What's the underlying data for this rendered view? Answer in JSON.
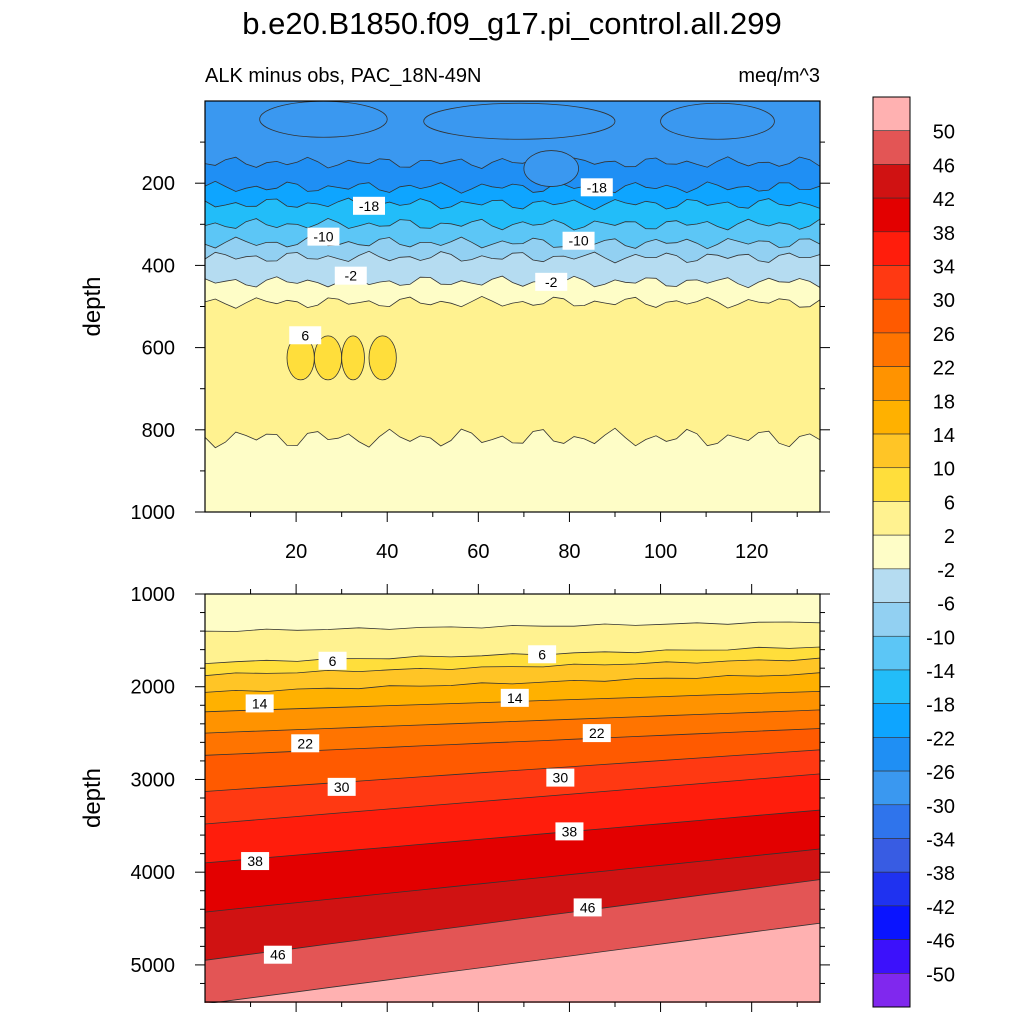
{
  "page": {
    "title": "b.e20.B1850.f09_g17.pi_control.all.299",
    "subtitle_left": "ALK minus obs, PAC_18N-49N",
    "subtitle_right": "meq/m^3"
  },
  "chart_data": [
    {
      "type": "contour",
      "panel": "upper",
      "xlabel": "",
      "ylabel": "depth",
      "xlim": [
        0,
        135
      ],
      "ylim": [
        0,
        1000
      ],
      "y_reversed": true,
      "xticks": [
        20,
        40,
        60,
        80,
        100,
        120
      ],
      "yticks": [
        200,
        400,
        600,
        800,
        1000
      ],
      "layers": [
        {
          "range": "-30 to -26",
          "color": "#3a98f0",
          "depth": [
            0,
            150
          ]
        },
        {
          "range": "-26 to -22",
          "color": "#1f8ff4",
          "depth": [
            150,
            210
          ]
        },
        {
          "range": "-22 to -18",
          "color": "#0ea5ff",
          "depth": [
            210,
            250
          ]
        },
        {
          "range": "-18 to -14",
          "color": "#22bdf9",
          "depth": [
            250,
            300
          ]
        },
        {
          "range": "-14 to -10",
          "color": "#5cc6f6",
          "depth": [
            300,
            345
          ]
        },
        {
          "range": "-10 to -6",
          "color": "#92d0f2",
          "depth": [
            345,
            380
          ]
        },
        {
          "range": "-6 to -2",
          "color": "#b5dcf1",
          "depth": [
            380,
            440
          ]
        },
        {
          "range": "-2 to 2",
          "color": "#fefdc7",
          "depth": [
            440,
            490
          ]
        },
        {
          "range": "2 to 6",
          "color": "#fff290",
          "depth": [
            490,
            820
          ]
        },
        {
          "range": "-2 to 2",
          "color": "#fefdc7",
          "depth": [
            820,
            1000
          ]
        }
      ],
      "contour_labels": [
        {
          "text": "-18",
          "x": 36,
          "depth": 255
        },
        {
          "text": "-18",
          "x": 86,
          "depth": 210
        },
        {
          "text": "-10",
          "x": 26,
          "depth": 330
        },
        {
          "text": "-10",
          "x": 82,
          "depth": 340
        },
        {
          "text": "-2",
          "x": 32,
          "depth": 425
        },
        {
          "text": "-2",
          "x": 76,
          "depth": 440
        },
        {
          "text": "6",
          "x": 22,
          "depth": 570
        }
      ]
    },
    {
      "type": "contour",
      "panel": "lower",
      "xlabel": "",
      "ylabel": "depth",
      "xlim": [
        0,
        135
      ],
      "ylim": [
        1000,
        5400
      ],
      "y_reversed": true,
      "yticks": [
        1000,
        2000,
        3000,
        4000,
        5000
      ],
      "contour_levels": [
        2,
        6,
        10,
        14,
        18,
        22,
        26,
        30,
        34,
        38,
        42,
        46,
        50
      ],
      "contour_depths_left": [
        1400,
        1740,
        1870,
        2060,
        2270,
        2500,
        2740,
        3130,
        3480,
        3900,
        4430,
        4950,
        5420
      ],
      "contour_depths_right": [
        1300,
        1570,
        1700,
        1860,
        2050,
        2250,
        2450,
        2680,
        2940,
        3330,
        3750,
        4080,
        4550
      ],
      "contour_labels": [
        {
          "text": "6",
          "x": 28,
          "depth": 1720
        },
        {
          "text": "6",
          "x": 74,
          "depth": 1650
        },
        {
          "text": "14",
          "x": 12,
          "depth": 2180
        },
        {
          "text": "14",
          "x": 68,
          "depth": 2120
        },
        {
          "text": "22",
          "x": 22,
          "depth": 2610
        },
        {
          "text": "22",
          "x": 86,
          "depth": 2500
        },
        {
          "text": "30",
          "x": 30,
          "depth": 3080
        },
        {
          "text": "30",
          "x": 78,
          "depth": 2980
        },
        {
          "text": "38",
          "x": 11,
          "depth": 3880
        },
        {
          "text": "38",
          "x": 80,
          "depth": 3560
        },
        {
          "text": "46",
          "x": 16,
          "depth": 4890
        },
        {
          "text": "46",
          "x": 84,
          "depth": 4380
        }
      ]
    }
  ],
  "colorbar": {
    "units": "meq/m^3",
    "tick_labels": [
      "50",
      "46",
      "42",
      "38",
      "34",
      "30",
      "26",
      "22",
      "18",
      "14",
      "10",
      "6",
      "2",
      "-2",
      "-6",
      "-10",
      "-14",
      "-18",
      "-22",
      "-26",
      "-30",
      "-34",
      "-38",
      "-42",
      "-46",
      "-50"
    ],
    "colors": [
      "#ffb1b1",
      "#e35555",
      "#d01212",
      "#e30000",
      "#ff1d0c",
      "#ff3912",
      "#ff5a00",
      "#ff7400",
      "#ff9300",
      "#ffb100",
      "#ffc526",
      "#ffde3b",
      "#fff290",
      "#fefdc7",
      "#b5dcf1",
      "#92d0f2",
      "#5cc6f6",
      "#22bdf9",
      "#0ea5ff",
      "#1f8ff4",
      "#3a98f0",
      "#2f74ec",
      "#385ce3",
      "#1f32f0",
      "#0a14ff",
      "#3c11fb",
      "#8028ee"
    ]
  }
}
